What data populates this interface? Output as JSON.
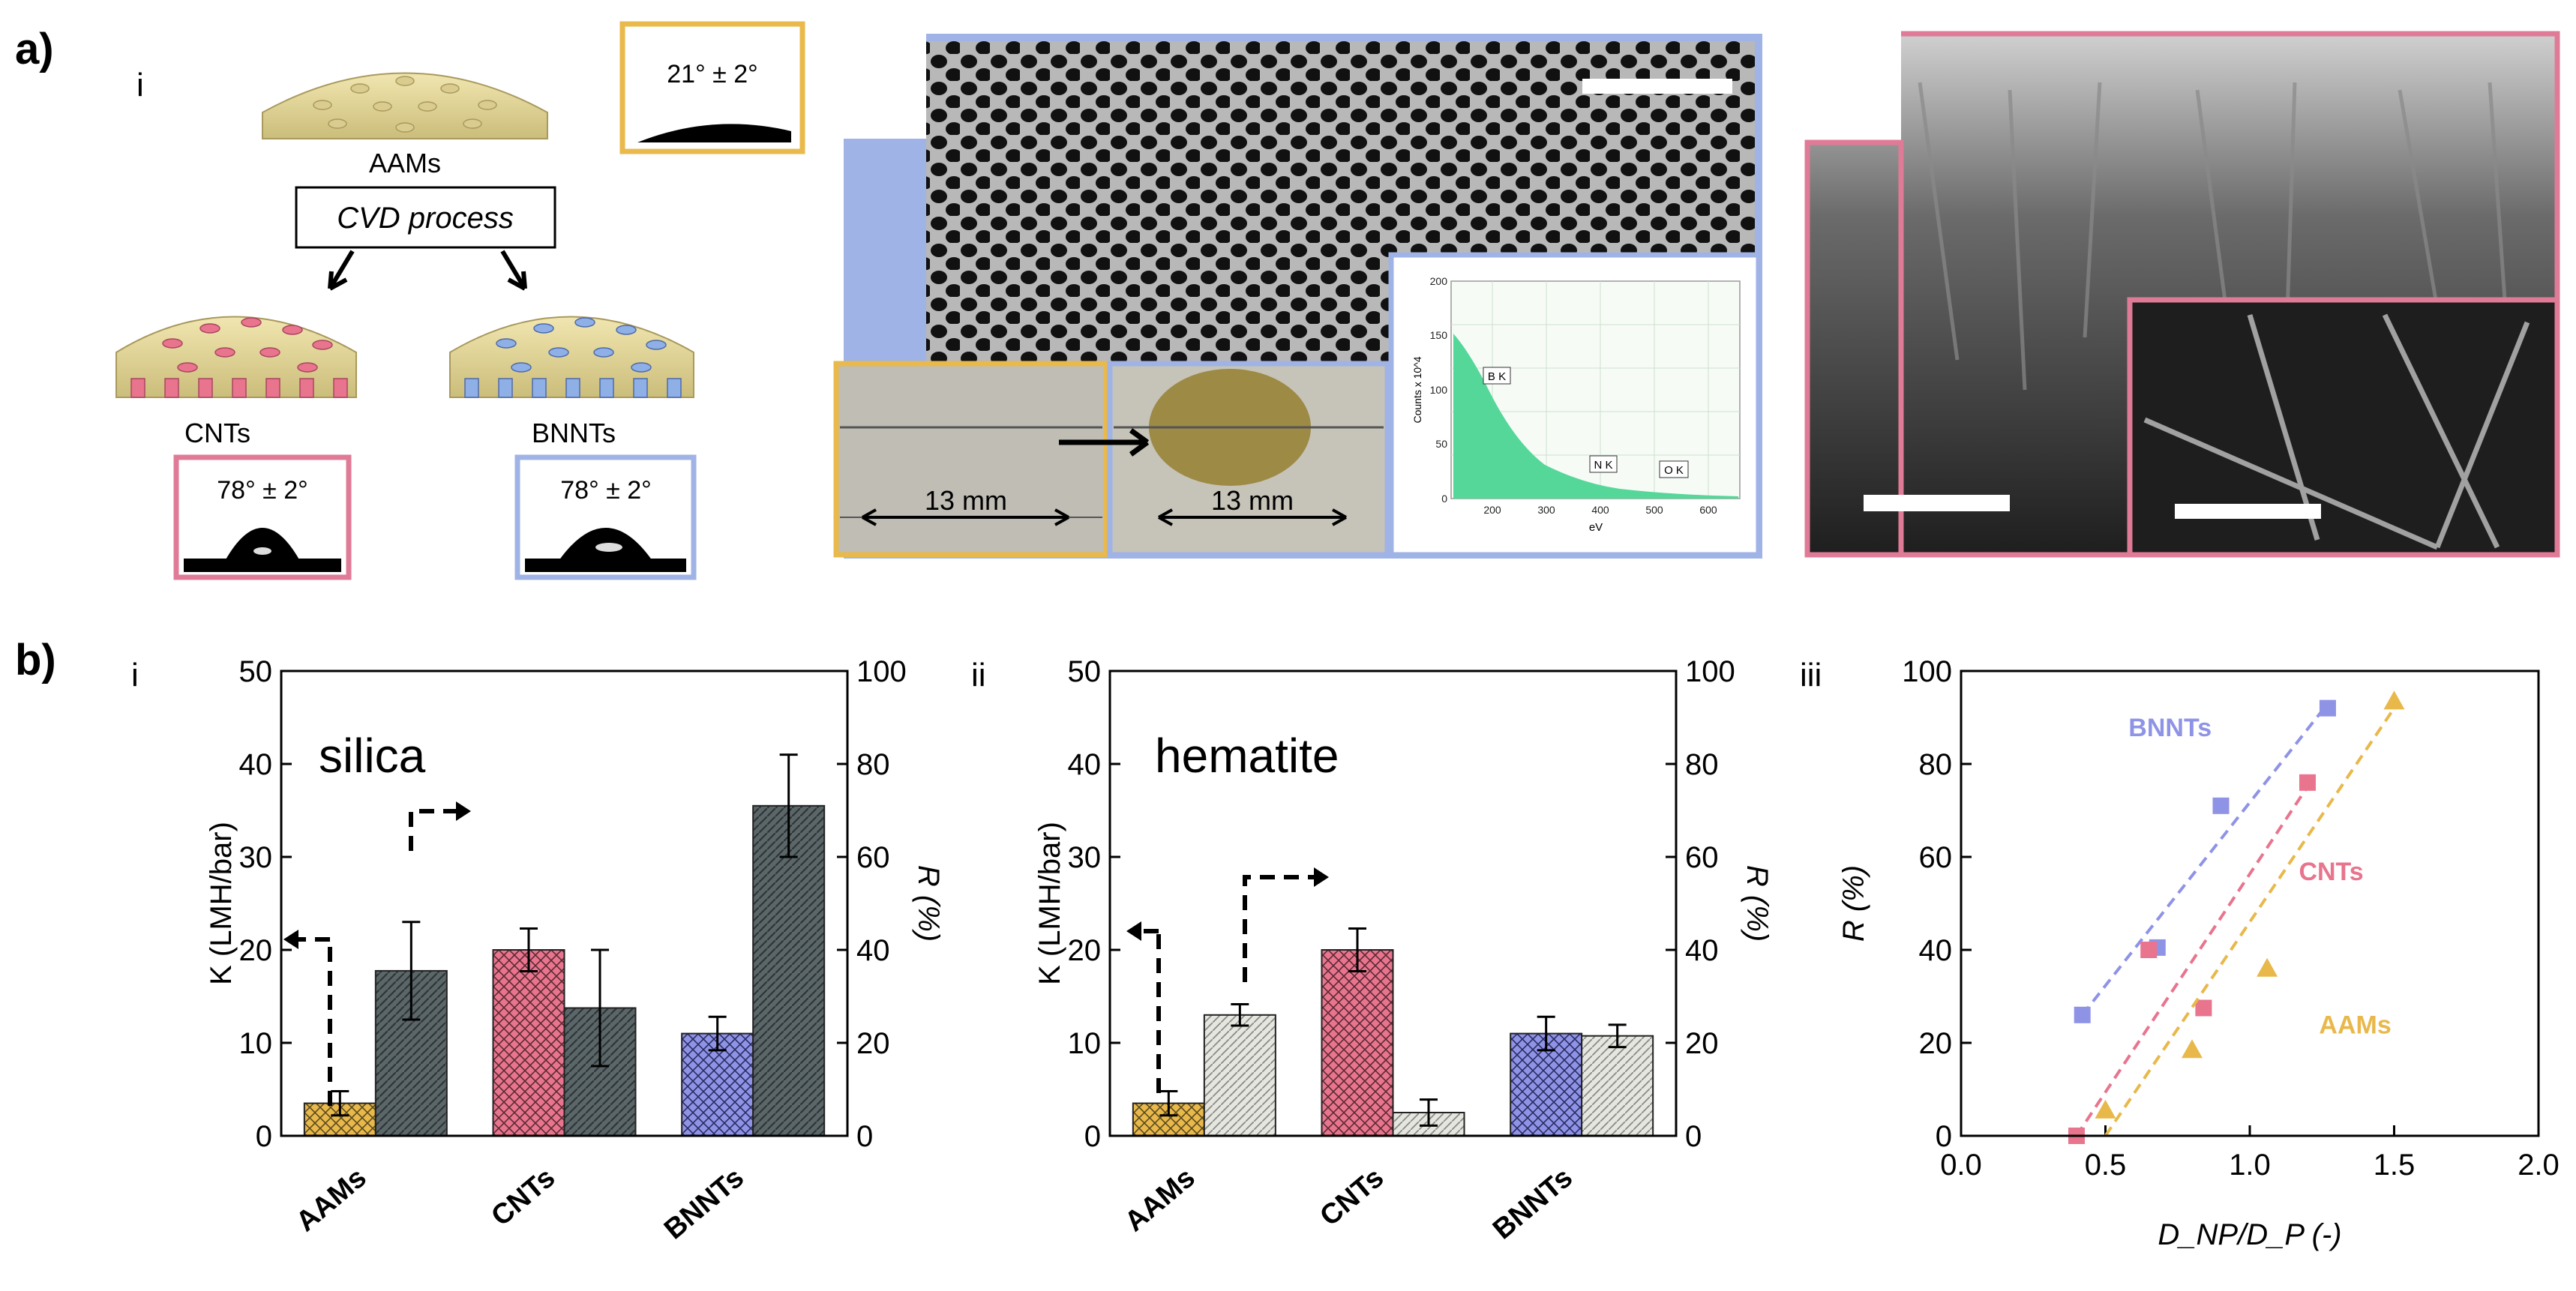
{
  "panel_labels": {
    "a": "a)",
    "b": "b)"
  },
  "sub_labels": {
    "i": "i",
    "ii": "ii",
    "iii": "iii"
  },
  "schematic": {
    "aams": "AAMs",
    "process": "CVD process",
    "cnts": "CNTs",
    "bnnts": "BNNTs",
    "angle_aams": "21° ± 2°",
    "angle_cnts": "78° ± 2°",
    "angle_bnnts": "78° ± 2°"
  },
  "sem": {
    "dim_left": "13 mm",
    "dim_right": "13 mm",
    "eds_ylabel": "Counts x 10^4",
    "eds_xlabel": "eV",
    "eds_peaks": [
      "B K",
      "N K",
      "O K"
    ],
    "eds_xticks": [
      "200",
      "300",
      "400",
      "500",
      "600"
    ],
    "eds_yticks": [
      "0",
      "50",
      "100",
      "150",
      "200"
    ]
  },
  "colors": {
    "aams": "#e8b84a",
    "cnts": "#e8748d",
    "bnnts": "#8f93e6",
    "dark_bar": "#5b6668",
    "light_bar": "#dcdcd6",
    "frame_yellow": "#e9b94b",
    "frame_pink": "#e07b97",
    "frame_blue": "#9fb3e6"
  },
  "chart_data": [
    {
      "type": "bar",
      "title": "silica",
      "categories": [
        "AAMs",
        "CNTs",
        "BNNTs"
      ],
      "ylabel": "K (LMH/bar)",
      "y2label": "R (%)",
      "ylim": [
        0,
        50
      ],
      "y2lim": [
        0,
        100
      ],
      "yticks": [
        "0",
        "10",
        "20",
        "30",
        "40",
        "50"
      ],
      "y2ticks": [
        "0",
        "20",
        "40",
        "60",
        "80",
        "100"
      ],
      "series": [
        {
          "name": "K",
          "axis": "left",
          "values": [
            3.5,
            20,
            11
          ],
          "errors": [
            1.3,
            2.3,
            1.8
          ]
        },
        {
          "name": "R",
          "axis": "right",
          "values": [
            35.5,
            27.5,
            71
          ],
          "errors": [
            10.5,
            12.5,
            11
          ]
        }
      ]
    },
    {
      "type": "bar",
      "title": "hematite",
      "categories": [
        "AAMs",
        "CNTs",
        "BNNTs"
      ],
      "ylabel": "K (LMH/bar)",
      "y2label": "R (%)",
      "ylim": [
        0,
        50
      ],
      "y2lim": [
        0,
        100
      ],
      "yticks": [
        "0",
        "10",
        "20",
        "30",
        "40",
        "50"
      ],
      "y2ticks": [
        "0",
        "20",
        "40",
        "60",
        "80",
        "100"
      ],
      "series": [
        {
          "name": "K",
          "axis": "left",
          "values": [
            3.5,
            20,
            11
          ],
          "errors": [
            1.3,
            2.3,
            1.8
          ]
        },
        {
          "name": "R",
          "axis": "right",
          "values": [
            26,
            5,
            21.5
          ],
          "errors": [
            2.3,
            2.8,
            2.4
          ]
        }
      ]
    },
    {
      "type": "scatter",
      "xlabel": "D_NP/D_P (-)",
      "ylabel": "R (%)",
      "xlim": [
        0,
        2
      ],
      "ylim": [
        0,
        100
      ],
      "xticks": [
        "0.0",
        "0.5",
        "1.0",
        "1.5",
        "2.0"
      ],
      "yticks": [
        "0",
        "20",
        "40",
        "60",
        "80",
        "100"
      ],
      "series": [
        {
          "name": "BNNTs",
          "marker": "square",
          "x": [
            0.42,
            0.68,
            0.9,
            1.27
          ],
          "y": [
            26,
            40.5,
            71,
            92
          ],
          "fit": [
            [
              0.42,
              26
            ],
            [
              1.27,
              93
            ]
          ]
        },
        {
          "name": "CNTs",
          "marker": "square",
          "x": [
            0.4,
            0.65,
            0.84,
            1.2
          ],
          "y": [
            0,
            40,
            27.5,
            76
          ],
          "fit": [
            [
              0.4,
              0
            ],
            [
              1.22,
              77
            ]
          ]
        },
        {
          "name": "AAMs",
          "marker": "triangle",
          "x": [
            0.5,
            0.8,
            1.06,
            1.5
          ],
          "y": [
            5.5,
            18.5,
            36,
            93.5
          ],
          "fit": [
            [
              0.5,
              0
            ],
            [
              1.5,
              92
            ]
          ]
        }
      ]
    }
  ]
}
